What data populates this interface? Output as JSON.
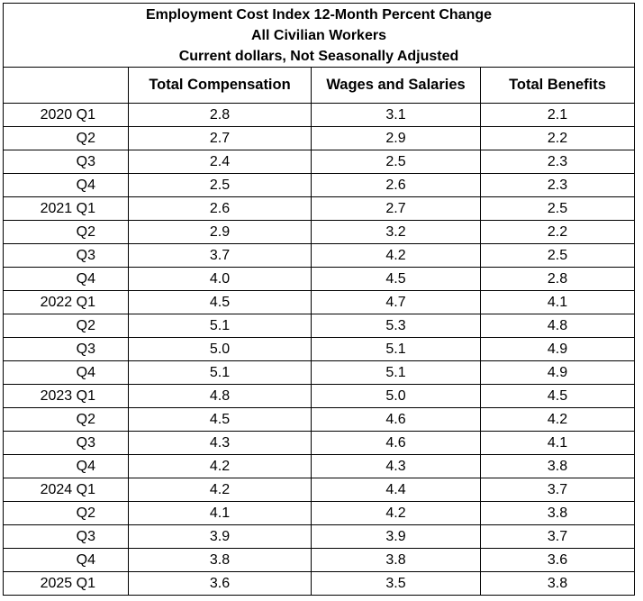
{
  "title_lines": [
    "Employment Cost Index 12-Month Percent Change",
    "All Civilian Workers",
    "Current dollars, Not Seasonally Adjusted"
  ],
  "columns": [
    "",
    "Total Compensation",
    "Wages and Salaries",
    "Total Benefits"
  ],
  "rows": [
    {
      "period": "2020 Q1",
      "total_compensation": "2.8",
      "wages_and_salaries": "3.1",
      "total_benefits": "2.1"
    },
    {
      "period": "Q2",
      "total_compensation": "2.7",
      "wages_and_salaries": "2.9",
      "total_benefits": "2.2"
    },
    {
      "period": "Q3",
      "total_compensation": "2.4",
      "wages_and_salaries": "2.5",
      "total_benefits": "2.3"
    },
    {
      "period": "Q4",
      "total_compensation": "2.5",
      "wages_and_salaries": "2.6",
      "total_benefits": "2.3"
    },
    {
      "period": "2021 Q1",
      "total_compensation": "2.6",
      "wages_and_salaries": "2.7",
      "total_benefits": "2.5"
    },
    {
      "period": "Q2",
      "total_compensation": "2.9",
      "wages_and_salaries": "3.2",
      "total_benefits": "2.2"
    },
    {
      "period": "Q3",
      "total_compensation": "3.7",
      "wages_and_salaries": "4.2",
      "total_benefits": "2.5"
    },
    {
      "period": "Q4",
      "total_compensation": "4.0",
      "wages_and_salaries": "4.5",
      "total_benefits": "2.8"
    },
    {
      "period": "2022 Q1",
      "total_compensation": "4.5",
      "wages_and_salaries": "4.7",
      "total_benefits": "4.1"
    },
    {
      "period": "Q2",
      "total_compensation": "5.1",
      "wages_and_salaries": "5.3",
      "total_benefits": "4.8"
    },
    {
      "period": "Q3",
      "total_compensation": "5.0",
      "wages_and_salaries": "5.1",
      "total_benefits": "4.9"
    },
    {
      "period": "Q4",
      "total_compensation": "5.1",
      "wages_and_salaries": "5.1",
      "total_benefits": "4.9"
    },
    {
      "period": "2023 Q1",
      "total_compensation": "4.8",
      "wages_and_salaries": "5.0",
      "total_benefits": "4.5"
    },
    {
      "period": "Q2",
      "total_compensation": "4.5",
      "wages_and_salaries": "4.6",
      "total_benefits": "4.2"
    },
    {
      "period": "Q3",
      "total_compensation": "4.3",
      "wages_and_salaries": "4.6",
      "total_benefits": "4.1"
    },
    {
      "period": "Q4",
      "total_compensation": "4.2",
      "wages_and_salaries": "4.3",
      "total_benefits": "3.8"
    },
    {
      "period": "2024 Q1",
      "total_compensation": "4.2",
      "wages_and_salaries": "4.4",
      "total_benefits": "3.7"
    },
    {
      "period": "Q2",
      "total_compensation": "4.1",
      "wages_and_salaries": "4.2",
      "total_benefits": "3.8"
    },
    {
      "period": "Q3",
      "total_compensation": "3.9",
      "wages_and_salaries": "3.9",
      "total_benefits": "3.7"
    },
    {
      "period": "Q4",
      "total_compensation": "3.8",
      "wages_and_salaries": "3.8",
      "total_benefits": "3.6"
    },
    {
      "period": "2025 Q1",
      "total_compensation": "3.6",
      "wages_and_salaries": "3.5",
      "total_benefits": "3.8"
    }
  ]
}
